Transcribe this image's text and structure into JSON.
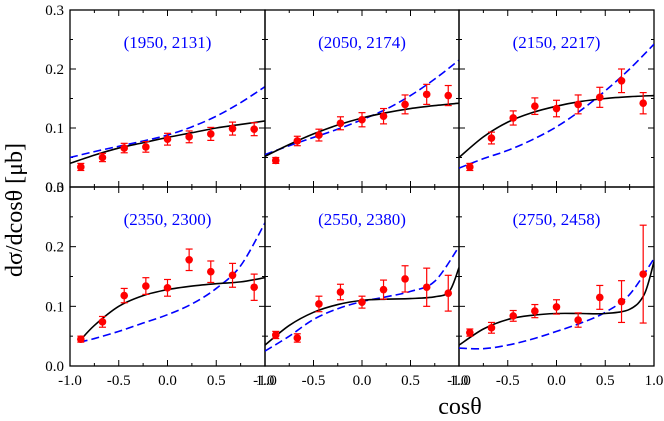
{
  "chart_data": {
    "type": "scatter",
    "layout": "2x3 grid of panels",
    "xlabel": "cosθ",
    "ylabel": "dσ/dcosθ [μb]",
    "xlim": [
      -1.0,
      1.0
    ],
    "ylim": [
      0.0,
      0.3
    ],
    "xticks": [
      "-1.0",
      "-0.5",
      "0.0",
      "0.5",
      "1.0"
    ],
    "yticks": [
      "0.0",
      "0.1",
      "0.2",
      "0.3"
    ],
    "series_styles": {
      "data": {
        "color": "#ff0000",
        "marker": "filled circle with error bars"
      },
      "solid_fit": {
        "color": "#000000",
        "style": "solid"
      },
      "dashed_fit": {
        "color": "#0000ff",
        "style": "dashed"
      }
    },
    "panels": [
      {
        "label": "(1950, 2131)",
        "points": [
          {
            "x": -0.889,
            "y": 0.034,
            "err": 0.006
          },
          {
            "x": -0.667,
            "y": 0.05,
            "err": 0.007
          },
          {
            "x": -0.444,
            "y": 0.066,
            "err": 0.008
          },
          {
            "x": -0.222,
            "y": 0.068,
            "err": 0.009
          },
          {
            "x": 0.0,
            "y": 0.081,
            "err": 0.01
          },
          {
            "x": 0.222,
            "y": 0.085,
            "err": 0.01
          },
          {
            "x": 0.444,
            "y": 0.09,
            "err": 0.011
          },
          {
            "x": 0.667,
            "y": 0.099,
            "err": 0.011
          },
          {
            "x": 0.889,
            "y": 0.098,
            "err": 0.011
          }
        ],
        "solid_curve": {
          "x": [
            -1.0,
            -0.75,
            -0.5,
            -0.25,
            0.0,
            0.25,
            0.5,
            0.75,
            1.0
          ],
          "y": [
            0.04,
            0.054,
            0.066,
            0.075,
            0.084,
            0.092,
            0.1,
            0.106,
            0.112
          ]
        },
        "dashed_curve": {
          "x": [
            -1.0,
            -0.75,
            -0.5,
            -0.25,
            0.0,
            0.25,
            0.5,
            0.75,
            1.0
          ],
          "y": [
            0.05,
            0.06,
            0.069,
            0.078,
            0.088,
            0.102,
            0.12,
            0.143,
            0.17
          ]
        }
      },
      {
        "label": "(2050, 2174)",
        "points": [
          {
            "x": -0.889,
            "y": 0.045,
            "err": 0.005
          },
          {
            "x": -0.667,
            "y": 0.078,
            "err": 0.008
          },
          {
            "x": -0.444,
            "y": 0.088,
            "err": 0.01
          },
          {
            "x": -0.222,
            "y": 0.108,
            "err": 0.011
          },
          {
            "x": 0.0,
            "y": 0.114,
            "err": 0.012
          },
          {
            "x": 0.222,
            "y": 0.12,
            "err": 0.013
          },
          {
            "x": 0.444,
            "y": 0.14,
            "err": 0.016
          },
          {
            "x": 0.667,
            "y": 0.157,
            "err": 0.017
          },
          {
            "x": 0.889,
            "y": 0.155,
            "err": 0.017
          }
        ],
        "solid_curve": {
          "x": [
            -1.0,
            -0.75,
            -0.5,
            -0.25,
            0.0,
            0.25,
            0.5,
            0.75,
            1.0
          ],
          "y": [
            0.052,
            0.072,
            0.09,
            0.105,
            0.117,
            0.126,
            0.133,
            0.138,
            0.142
          ]
        },
        "dashed_curve": {
          "x": [
            -1.0,
            -0.75,
            -0.5,
            -0.25,
            0.0,
            0.25,
            0.5,
            0.75,
            1.0
          ],
          "y": [
            0.055,
            0.07,
            0.084,
            0.098,
            0.114,
            0.132,
            0.155,
            0.183,
            0.215
          ]
        }
      },
      {
        "label": "(2150, 2217)",
        "points": [
          {
            "x": -0.889,
            "y": 0.034,
            "err": 0.006
          },
          {
            "x": -0.667,
            "y": 0.083,
            "err": 0.01
          },
          {
            "x": -0.444,
            "y": 0.117,
            "err": 0.012
          },
          {
            "x": -0.222,
            "y": 0.137,
            "err": 0.014
          },
          {
            "x": 0.0,
            "y": 0.133,
            "err": 0.014
          },
          {
            "x": 0.222,
            "y": 0.14,
            "err": 0.016
          },
          {
            "x": 0.444,
            "y": 0.152,
            "err": 0.017
          },
          {
            "x": 0.667,
            "y": 0.18,
            "err": 0.02
          },
          {
            "x": 0.889,
            "y": 0.142,
            "err": 0.018
          }
        ],
        "solid_curve": {
          "x": [
            -1.0,
            -0.75,
            -0.5,
            -0.25,
            0.0,
            0.25,
            0.5,
            0.75,
            1.0
          ],
          "y": [
            0.05,
            0.085,
            0.11,
            0.126,
            0.137,
            0.145,
            0.15,
            0.153,
            0.155
          ]
        },
        "dashed_curve": {
          "x": [
            -1.0,
            -0.75,
            -0.5,
            -0.25,
            0.0,
            0.25,
            0.5,
            0.75,
            1.0
          ],
          "y": [
            0.032,
            0.048,
            0.062,
            0.08,
            0.102,
            0.13,
            0.163,
            0.2,
            0.242
          ]
        }
      },
      {
        "label": "(2350, 2300)",
        "points": [
          {
            "x": -0.889,
            "y": 0.045,
            "err": 0.005
          },
          {
            "x": -0.667,
            "y": 0.074,
            "err": 0.009
          },
          {
            "x": -0.444,
            "y": 0.118,
            "err": 0.012
          },
          {
            "x": -0.222,
            "y": 0.134,
            "err": 0.014
          },
          {
            "x": 0.0,
            "y": 0.131,
            "err": 0.014
          },
          {
            "x": 0.222,
            "y": 0.178,
            "err": 0.018
          },
          {
            "x": 0.444,
            "y": 0.158,
            "err": 0.018
          },
          {
            "x": 0.667,
            "y": 0.152,
            "err": 0.02
          },
          {
            "x": 0.889,
            "y": 0.132,
            "err": 0.022
          }
        ],
        "solid_curve": {
          "x": [
            -0.9,
            -0.75,
            -0.5,
            -0.25,
            0.0,
            0.25,
            0.5,
            0.75,
            1.0
          ],
          "y": [
            0.042,
            0.068,
            0.1,
            0.118,
            0.128,
            0.134,
            0.138,
            0.141,
            0.148
          ]
        },
        "dashed_curve": {
          "x": [
            -0.9,
            -0.75,
            -0.5,
            -0.25,
            0.0,
            0.25,
            0.5,
            0.75,
            1.0
          ],
          "y": [
            0.04,
            0.046,
            0.058,
            0.072,
            0.086,
            0.104,
            0.13,
            0.168,
            0.24
          ]
        }
      },
      {
        "label": "(2550, 2380)",
        "points": [
          {
            "x": -0.889,
            "y": 0.052,
            "err": 0.006
          },
          {
            "x": -0.667,
            "y": 0.047,
            "err": 0.007
          },
          {
            "x": -0.444,
            "y": 0.104,
            "err": 0.013
          },
          {
            "x": -0.222,
            "y": 0.124,
            "err": 0.013
          },
          {
            "x": 0.0,
            "y": 0.107,
            "err": 0.01
          },
          {
            "x": 0.222,
            "y": 0.128,
            "err": 0.016
          },
          {
            "x": 0.444,
            "y": 0.146,
            "err": 0.022
          },
          {
            "x": 0.667,
            "y": 0.132,
            "err": 0.032
          },
          {
            "x": 0.889,
            "y": 0.122,
            "err": 0.03
          }
        ],
        "solid_curve": {
          "x": [
            -1.0,
            -0.75,
            -0.5,
            -0.25,
            0.0,
            0.25,
            0.5,
            0.75,
            0.9,
            1.0
          ],
          "y": [
            0.035,
            0.068,
            0.09,
            0.103,
            0.11,
            0.112,
            0.113,
            0.116,
            0.125,
            0.165
          ]
        },
        "dashed_curve": {
          "x": [
            -1.0,
            -0.75,
            -0.5,
            -0.25,
            0.0,
            0.25,
            0.5,
            0.75,
            1.0
          ],
          "y": [
            0.025,
            0.05,
            0.078,
            0.096,
            0.108,
            0.116,
            0.125,
            0.142,
            0.2
          ]
        }
      },
      {
        "label": "(2750, 2458)",
        "points": [
          {
            "x": -0.889,
            "y": 0.056,
            "err": 0.006
          },
          {
            "x": -0.667,
            "y": 0.064,
            "err": 0.009
          },
          {
            "x": -0.444,
            "y": 0.084,
            "err": 0.009
          },
          {
            "x": -0.222,
            "y": 0.092,
            "err": 0.011
          },
          {
            "x": 0.0,
            "y": 0.099,
            "err": 0.012
          },
          {
            "x": 0.222,
            "y": 0.077,
            "err": 0.012
          },
          {
            "x": 0.444,
            "y": 0.115,
            "err": 0.02
          },
          {
            "x": 0.667,
            "y": 0.108,
            "err": 0.035
          },
          {
            "x": 0.889,
            "y": 0.154,
            "err": 0.082
          }
        ],
        "solid_curve": {
          "x": [
            -1.0,
            -0.75,
            -0.5,
            -0.25,
            0.0,
            0.25,
            0.5,
            0.75,
            0.9,
            1.0
          ],
          "y": [
            0.035,
            0.062,
            0.078,
            0.085,
            0.088,
            0.088,
            0.088,
            0.095,
            0.12,
            0.175
          ]
        },
        "dashed_curve": {
          "x": [
            -1.0,
            -0.75,
            -0.5,
            -0.25,
            0.0,
            0.25,
            0.5,
            0.75,
            1.0
          ],
          "y": [
            0.03,
            0.029,
            0.035,
            0.045,
            0.058,
            0.072,
            0.09,
            0.12,
            0.18
          ]
        }
      }
    ]
  }
}
